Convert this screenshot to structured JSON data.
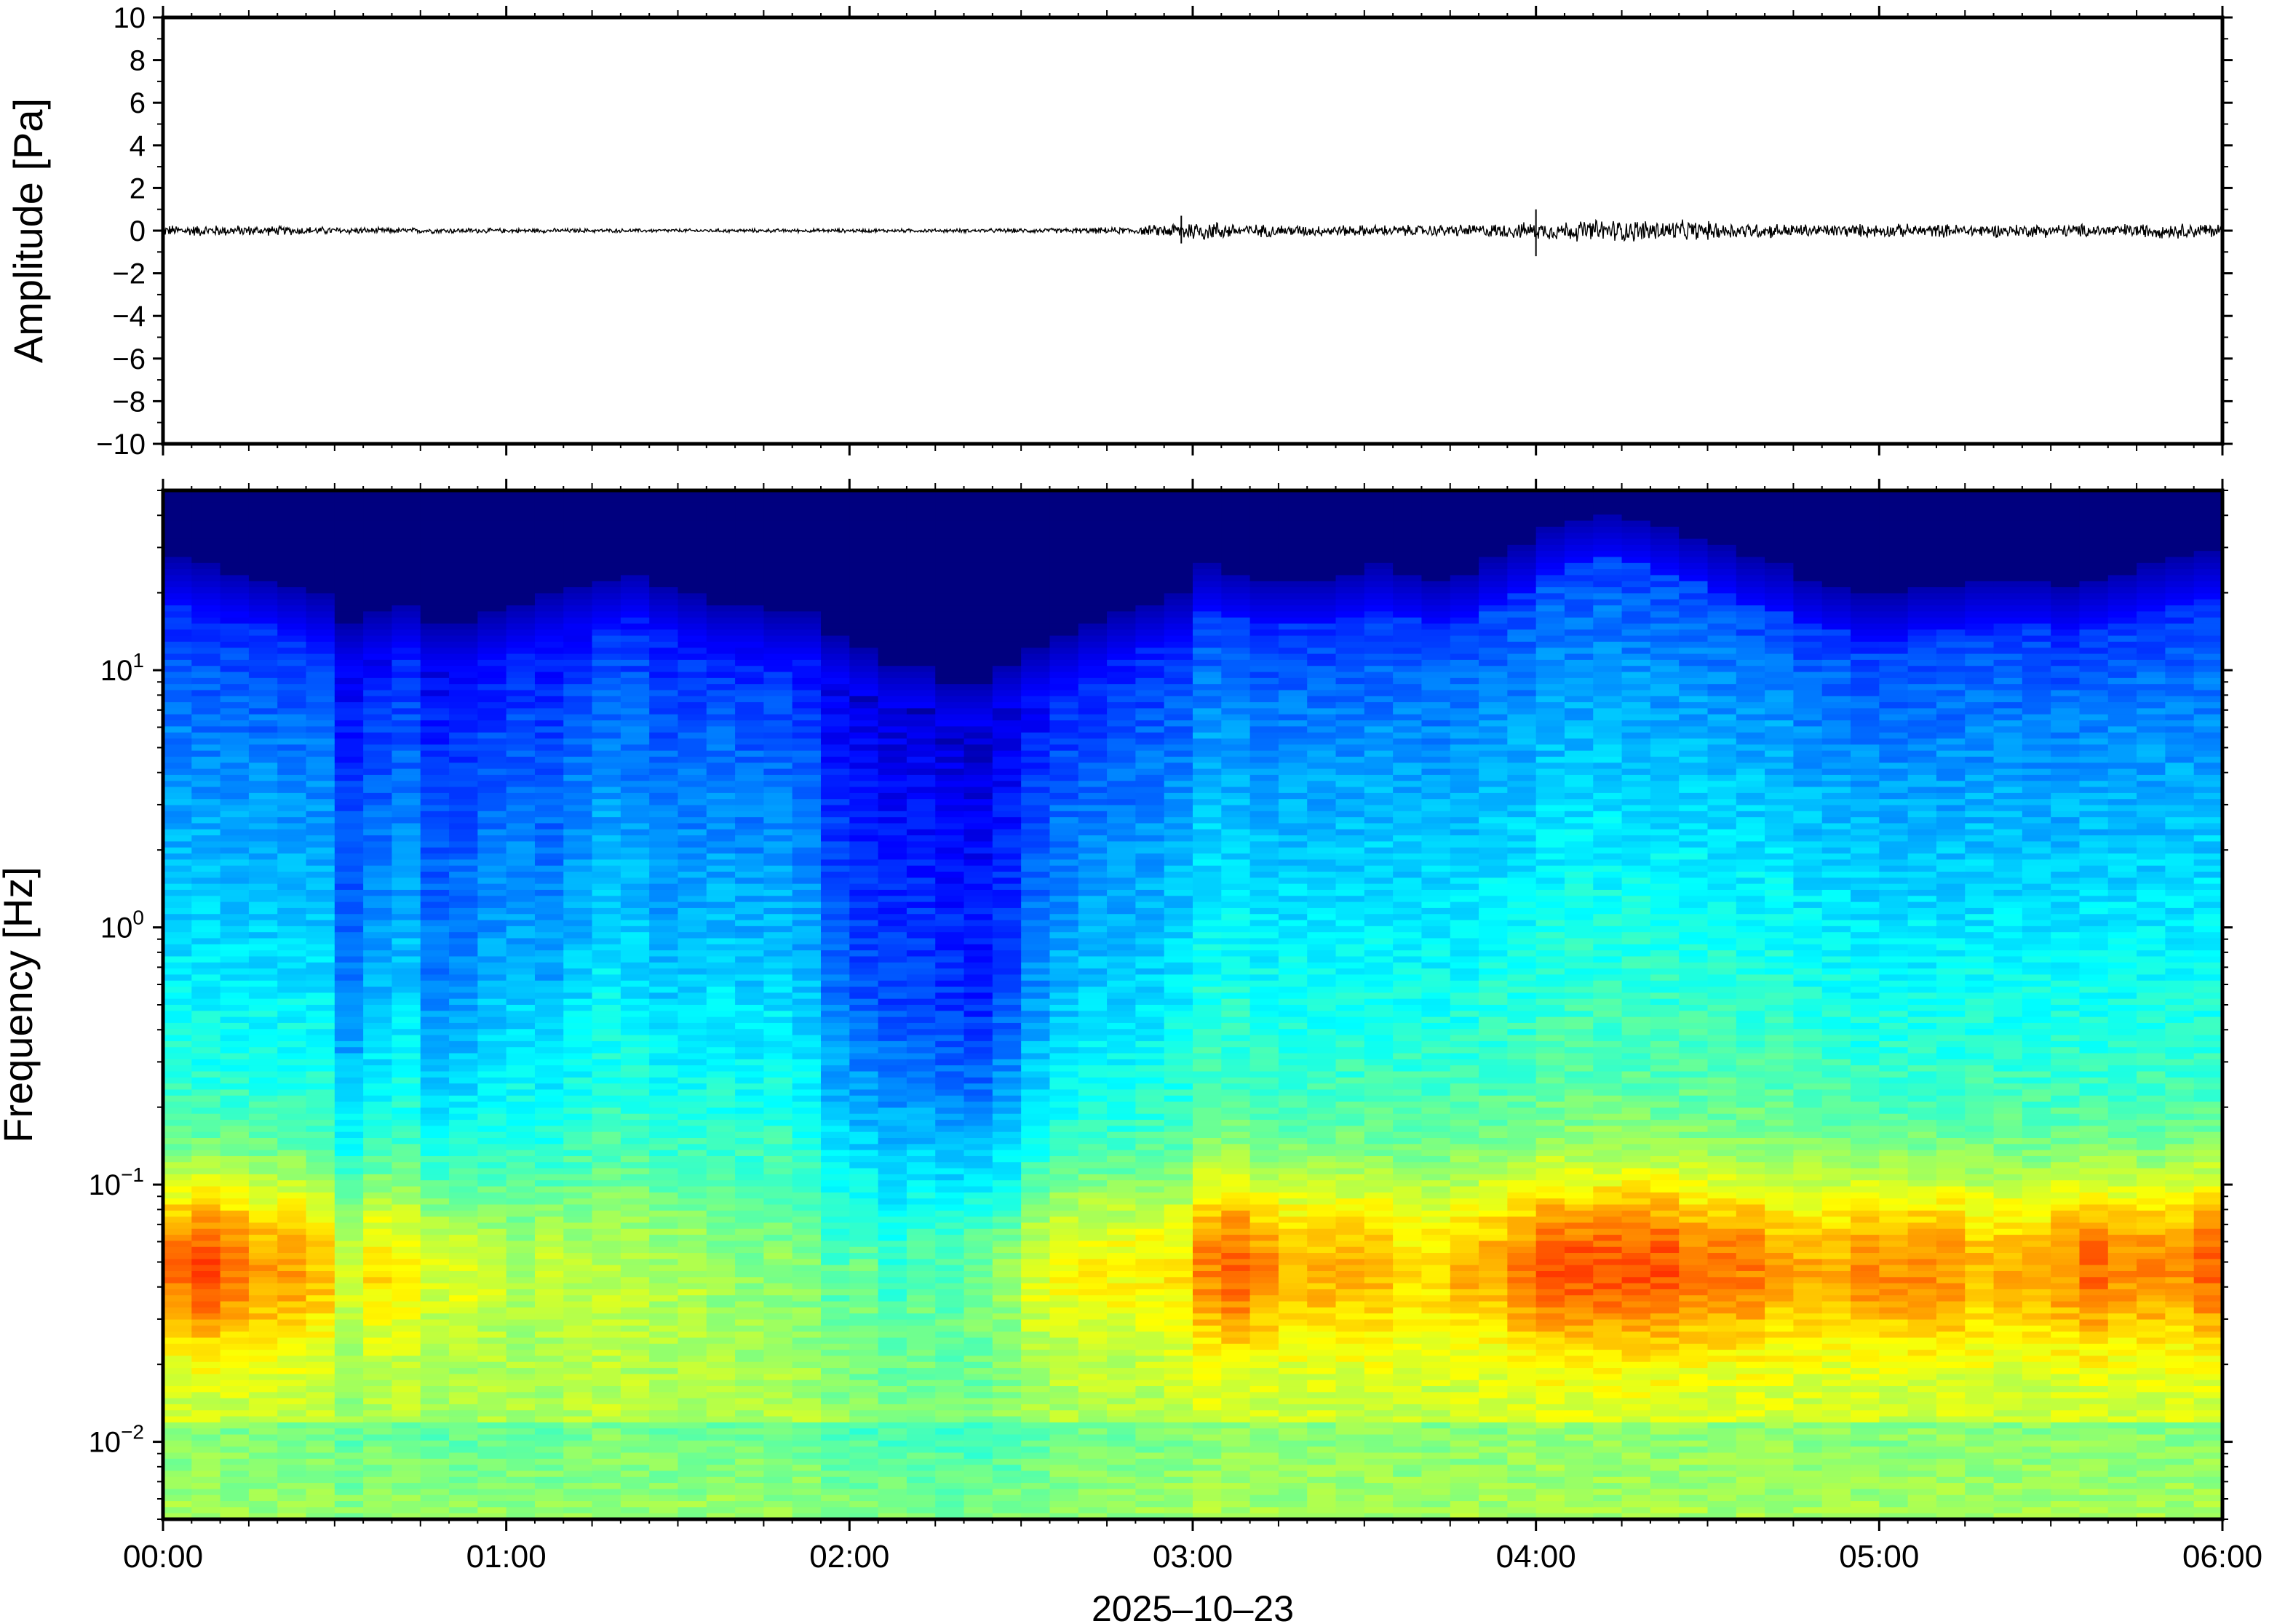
{
  "chart_data": [
    {
      "type": "line",
      "panel": "waveform",
      "title": "",
      "xlabel": "",
      "ylabel": "Amplitude [Pa]",
      "xlim": [
        "00:00",
        "06:00"
      ],
      "ylim": [
        -10,
        10
      ],
      "y_ticks": [
        10,
        8,
        6,
        4,
        2,
        0,
        -2,
        -4,
        -6,
        -8,
        -10
      ],
      "y_tick_labels": [
        "10",
        "8",
        "6",
        "4",
        "2",
        "0",
        "−2",
        "−4",
        "−6",
        "−8",
        "−10"
      ],
      "grid": false,
      "envelope": {
        "x_minutes": [
          0,
          10,
          20,
          30,
          40,
          50,
          60,
          70,
          80,
          90,
          100,
          110,
          120,
          130,
          140,
          150,
          160,
          170,
          175,
          180,
          190,
          200,
          210,
          220,
          230,
          240,
          250,
          260,
          270,
          280,
          290,
          300,
          310,
          320,
          330,
          340,
          350,
          360
        ],
        "y_max_pa": [
          0.3,
          0.3,
          0.25,
          0.2,
          0.15,
          0.15,
          0.12,
          0.12,
          0.1,
          0.1,
          0.1,
          0.1,
          0.1,
          0.1,
          0.1,
          0.12,
          0.15,
          0.2,
          0.35,
          0.6,
          0.35,
          0.3,
          0.3,
          0.3,
          0.35,
          0.45,
          0.6,
          0.6,
          0.5,
          0.4,
          0.35,
          0.35,
          0.35,
          0.35,
          0.35,
          0.35,
          0.4,
          0.4
        ]
      },
      "events": [
        {
          "x_minutes": 178,
          "min_pa": -0.6,
          "max_pa": 0.7
        },
        {
          "x_minutes": 240,
          "min_pa": -1.2,
          "max_pa": 1.0
        }
      ]
    },
    {
      "type": "heatmap",
      "panel": "spectrogram",
      "title": "",
      "xlabel": "2025–10–23",
      "ylabel": "Frequency [Hz]",
      "xlim": [
        "00:00",
        "06:00"
      ],
      "x_tick_labels": [
        "00:00",
        "01:00",
        "02:00",
        "03:00",
        "04:00",
        "05:00",
        "06:00"
      ],
      "yscale": "log",
      "ylim_hz": [
        0.005,
        50
      ],
      "y_ticks": [
        {
          "base": "10",
          "exp": "1"
        },
        {
          "base": "10",
          "exp": "0"
        },
        {
          "base": "10",
          "exp": "−1"
        },
        {
          "base": "10",
          "exp": "−2"
        }
      ],
      "colormap": "jet",
      "colormap_stops": [
        "#00007f",
        "#0000ff",
        "#007fff",
        "#00ffff",
        "#7fff7f",
        "#ffff00",
        "#ff7f00",
        "#ff0000"
      ],
      "colorbar": false,
      "column_minutes": 5,
      "quiet_level": [
        0.2,
        0.2,
        0.2,
        0.2,
        0.2,
        0.2,
        0.6,
        0.4,
        0.3,
        0.55,
        0.5,
        0.4,
        0.35,
        0.45,
        0.3,
        0.2,
        0.25,
        0.35,
        0.3,
        0.25,
        0.3,
        0.25,
        0.35,
        0.65,
        0.75,
        0.8,
        0.8,
        0.85,
        0.9,
        0.75,
        0.5,
        0.35,
        0.3,
        0.3,
        0.25,
        0.2,
        0.05,
        0.05,
        0.1,
        0.1,
        0.1,
        0.1,
        0.1,
        0.1,
        0.1,
        0.1,
        0.05,
        0.05,
        0.0,
        0.0,
        0.0,
        0.0,
        0.0,
        0.0,
        0.0,
        0.0,
        0.0,
        0.05,
        0.05,
        0.1,
        0.1,
        0.1,
        0.1,
        0.1,
        0.1,
        0.1,
        0.1,
        0.1,
        0.1,
        0.1,
        0.1,
        0.1
      ],
      "top_cutoff_hz": [
        18,
        17,
        16,
        15,
        14,
        13,
        10,
        11,
        12,
        10,
        10,
        11,
        12,
        13,
        14,
        15,
        16,
        14,
        13,
        12,
        12,
        11,
        11,
        9,
        8,
        7,
        7,
        6,
        6,
        7,
        8,
        9,
        10,
        11,
        12,
        13,
        17,
        16,
        15,
        15,
        15,
        16,
        17,
        16,
        15,
        16,
        18,
        20,
        24,
        26,
        27,
        26,
        24,
        22,
        20,
        18,
        17,
        15,
        14,
        13,
        13,
        14,
        14,
        15,
        15,
        15,
        14,
        15,
        16,
        17,
        18,
        19
      ],
      "low_freq_level": [
        0.85,
        0.9,
        0.85,
        0.8,
        0.8,
        0.75,
        0.7,
        0.75,
        0.7,
        0.7,
        0.7,
        0.65,
        0.6,
        0.65,
        0.6,
        0.6,
        0.6,
        0.6,
        0.6,
        0.55,
        0.55,
        0.55,
        0.55,
        0.55,
        0.6,
        0.55,
        0.6,
        0.6,
        0.65,
        0.65,
        0.7,
        0.7,
        0.7,
        0.7,
        0.7,
        0.7,
        0.8,
        0.85,
        0.8,
        0.75,
        0.75,
        0.75,
        0.75,
        0.7,
        0.7,
        0.75,
        0.75,
        0.8,
        0.85,
        0.85,
        0.85,
        0.85,
        0.85,
        0.8,
        0.8,
        0.8,
        0.75,
        0.75,
        0.75,
        0.8,
        0.8,
        0.8,
        0.8,
        0.75,
        0.75,
        0.75,
        0.8,
        0.85,
        0.8,
        0.8,
        0.8,
        0.85
      ]
    }
  ]
}
